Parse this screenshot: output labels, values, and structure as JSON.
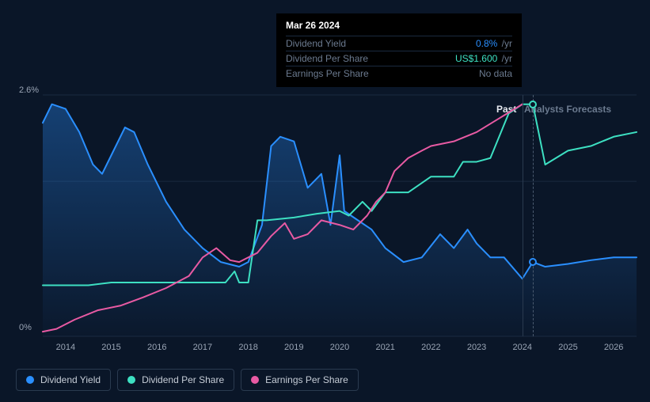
{
  "tooltip": {
    "date": "Mar 26 2024",
    "rows": [
      {
        "label": "Dividend Yield",
        "value": "0.8%",
        "unit": "/yr",
        "color": "#2a8fff"
      },
      {
        "label": "Dividend Per Share",
        "value": "US$1.600",
        "unit": "/yr",
        "color": "#3de0c2"
      },
      {
        "label": "Earnings Per Share",
        "value": "No data",
        "unit": "",
        "color": "#6b7a8f"
      }
    ]
  },
  "chart": {
    "type": "line",
    "background_color": "#0a1628",
    "grid_color": "#1a2a3f",
    "ylim": [
      0,
      2.6
    ],
    "y_ticks": [
      {
        "v": 2.6,
        "label": "2.6%"
      },
      {
        "v": 0,
        "label": "0%"
      }
    ],
    "grid_y_intermediate": 1.67,
    "x_years": [
      2014,
      2015,
      2016,
      2017,
      2018,
      2019,
      2020,
      2021,
      2022,
      2023,
      2024,
      2025,
      2026
    ],
    "x_range": [
      2013.5,
      2026.5
    ],
    "cursor_x": 2024.23,
    "past_x": 2024.0,
    "past_label": "Past",
    "forecast_label": "Analysts Forecasts",
    "series": [
      {
        "id": "dividend_yield",
        "label": "Dividend Yield",
        "color": "#2a8fff",
        "fill": true,
        "fill_gradient_top": "rgba(42,143,255,0.35)",
        "fill_gradient_bottom": "rgba(42,143,255,0.02)",
        "line_width": 2,
        "data": [
          [
            2013.5,
            2.3
          ],
          [
            2013.7,
            2.5
          ],
          [
            2014.0,
            2.45
          ],
          [
            2014.3,
            2.2
          ],
          [
            2014.6,
            1.85
          ],
          [
            2014.8,
            1.75
          ],
          [
            2015.0,
            1.95
          ],
          [
            2015.3,
            2.25
          ],
          [
            2015.5,
            2.2
          ],
          [
            2015.8,
            1.85
          ],
          [
            2016.2,
            1.45
          ],
          [
            2016.6,
            1.15
          ],
          [
            2017.0,
            0.95
          ],
          [
            2017.4,
            0.8
          ],
          [
            2017.8,
            0.75
          ],
          [
            2018.0,
            0.8
          ],
          [
            2018.3,
            1.2
          ],
          [
            2018.5,
            2.05
          ],
          [
            2018.7,
            2.15
          ],
          [
            2019.0,
            2.1
          ],
          [
            2019.3,
            1.6
          ],
          [
            2019.6,
            1.75
          ],
          [
            2019.8,
            1.2
          ],
          [
            2020.0,
            1.95
          ],
          [
            2020.1,
            1.35
          ],
          [
            2020.4,
            1.25
          ],
          [
            2020.7,
            1.15
          ],
          [
            2021.0,
            0.95
          ],
          [
            2021.4,
            0.8
          ],
          [
            2021.8,
            0.85
          ],
          [
            2022.2,
            1.1
          ],
          [
            2022.5,
            0.95
          ],
          [
            2022.8,
            1.15
          ],
          [
            2023.0,
            1.0
          ],
          [
            2023.3,
            0.85
          ],
          [
            2023.6,
            0.85
          ],
          [
            2024.0,
            0.62
          ],
          [
            2024.23,
            0.8
          ],
          [
            2024.5,
            0.75
          ],
          [
            2025.0,
            0.78
          ],
          [
            2025.5,
            0.82
          ],
          [
            2026.0,
            0.85
          ],
          [
            2026.5,
            0.85
          ]
        ],
        "marker_at": [
          2024.23,
          0.8
        ]
      },
      {
        "id": "dividend_per_share",
        "label": "Dividend Per Share",
        "color": "#3de0c2",
        "fill": false,
        "line_width": 2,
        "data": [
          [
            2013.5,
            0.55
          ],
          [
            2014.5,
            0.55
          ],
          [
            2015.0,
            0.58
          ],
          [
            2016.0,
            0.58
          ],
          [
            2017.5,
            0.58
          ],
          [
            2017.7,
            0.7
          ],
          [
            2017.8,
            0.58
          ],
          [
            2018.0,
            0.58
          ],
          [
            2018.2,
            1.25
          ],
          [
            2018.4,
            1.25
          ],
          [
            2019.0,
            1.28
          ],
          [
            2019.5,
            1.32
          ],
          [
            2020.0,
            1.35
          ],
          [
            2020.2,
            1.3
          ],
          [
            2020.5,
            1.45
          ],
          [
            2020.7,
            1.35
          ],
          [
            2021.0,
            1.55
          ],
          [
            2021.5,
            1.55
          ],
          [
            2022.0,
            1.72
          ],
          [
            2022.5,
            1.72
          ],
          [
            2022.7,
            1.88
          ],
          [
            2023.0,
            1.88
          ],
          [
            2023.3,
            1.92
          ],
          [
            2023.7,
            2.4
          ],
          [
            2024.0,
            2.5
          ],
          [
            2024.23,
            2.5
          ],
          [
            2024.5,
            1.85
          ],
          [
            2025.0,
            2.0
          ],
          [
            2025.5,
            2.05
          ],
          [
            2026.0,
            2.15
          ],
          [
            2026.5,
            2.2
          ]
        ],
        "marker_at": [
          2024.23,
          2.5
        ]
      },
      {
        "id": "earnings_per_share",
        "label": "Earnings Per Share",
        "color": "#e85aa3",
        "fill": false,
        "line_width": 2,
        "data": [
          [
            2013.5,
            0.05
          ],
          [
            2013.8,
            0.08
          ],
          [
            2014.2,
            0.18
          ],
          [
            2014.7,
            0.28
          ],
          [
            2015.2,
            0.33
          ],
          [
            2015.7,
            0.42
          ],
          [
            2016.2,
            0.52
          ],
          [
            2016.7,
            0.65
          ],
          [
            2017.0,
            0.85
          ],
          [
            2017.3,
            0.95
          ],
          [
            2017.6,
            0.82
          ],
          [
            2017.8,
            0.8
          ],
          [
            2018.2,
            0.9
          ],
          [
            2018.5,
            1.08
          ],
          [
            2018.8,
            1.22
          ],
          [
            2019.0,
            1.05
          ],
          [
            2019.3,
            1.1
          ],
          [
            2019.6,
            1.25
          ],
          [
            2020.0,
            1.2
          ],
          [
            2020.3,
            1.15
          ],
          [
            2020.6,
            1.3
          ],
          [
            2020.8,
            1.45
          ],
          [
            2021.0,
            1.55
          ],
          [
            2021.2,
            1.78
          ],
          [
            2021.5,
            1.92
          ],
          [
            2021.8,
            2.0
          ],
          [
            2022.0,
            2.05
          ],
          [
            2022.5,
            2.1
          ],
          [
            2023.0,
            2.2
          ],
          [
            2023.5,
            2.35
          ],
          [
            2024.0,
            2.5
          ]
        ]
      }
    ]
  },
  "legend": {
    "items": [
      {
        "id": "dividend_yield",
        "label": "Dividend Yield",
        "color": "#2a8fff"
      },
      {
        "id": "dividend_per_share",
        "label": "Dividend Per Share",
        "color": "#3de0c2"
      },
      {
        "id": "earnings_per_share",
        "label": "Earnings Per Share",
        "color": "#e85aa3"
      }
    ]
  }
}
